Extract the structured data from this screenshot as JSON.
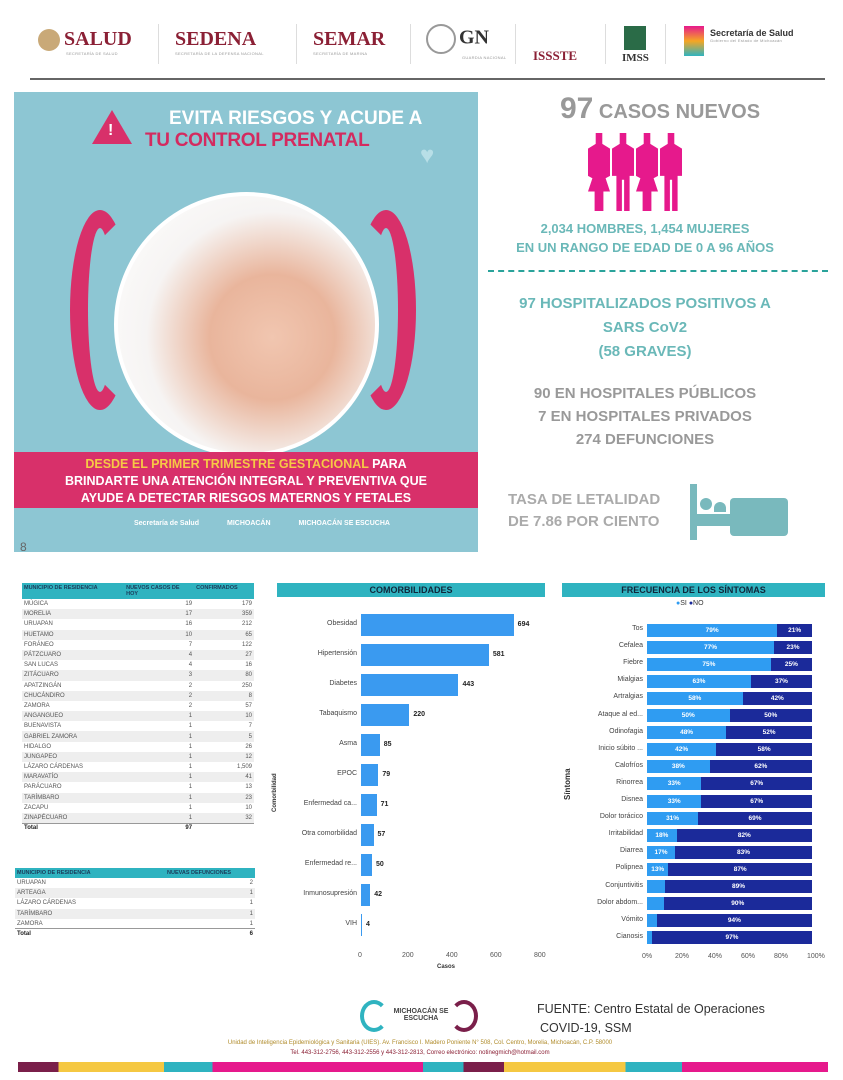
{
  "header": {
    "logos": [
      {
        "name": "SALUD",
        "sub": "SECRETARÍA DE SALUD"
      },
      {
        "name": "SEDENA",
        "sub": "SECRETARÍA DE LA DEFENSA NACIONAL"
      },
      {
        "name": "SEMAR",
        "sub": "SECRETARÍA DE MARINA"
      },
      {
        "name": "GN",
        "sub": "GUARDIA NACIONAL"
      },
      {
        "name": "ISSSTE",
        "sub": ""
      },
      {
        "name": "IMSS",
        "sub": ""
      },
      {
        "name": "Secretaría de Salud",
        "sub": "Gobierno del Estado de Michoacán"
      }
    ]
  },
  "poster": {
    "title1": "EVITA RIESGOS Y ACUDE A",
    "title2": "TU CONTROL PRENATAL",
    "highlight": "DESDE EL PRIMER TRIMESTRE GESTACIONAL",
    "body1": " PARA",
    "body2": "BRINDARTE UNA ATENCIÓN INTEGRAL Y PREVENTIVA QUE",
    "body3": "AYUDE A DETECTAR RIESGOS MATERNOS Y FETALES",
    "logo1": "Secretaría de Salud",
    "logo2": "MICHOACÁN",
    "logo3": "MICHOACÁN SE ESCUCHA"
  },
  "stats": {
    "casos_num": "97",
    "casos_label": "CASOS NUEVOS",
    "genero1": "2,034 HOMBRES, 1,454 MUJERES",
    "genero2": "EN UN RANGO DE EDAD DE 0 A 96 AÑOS",
    "hosp1": "97 HOSPITALIZADOS POSITIVOS A",
    "hosp2": "SARS CoV2",
    "hosp3": "(58 GRAVES)",
    "pub": "90 EN HOSPITALES PÚBLICOS",
    "priv": "7 EN HOSPITALES PRIVADOS",
    "def": "274 DEFUNCIONES",
    "tasa1": "TASA DE LETALIDAD",
    "tasa2": "DE 7.86 POR CIENTO",
    "colors": {
      "pink": "#e6198c",
      "teal": "#6ab8b8",
      "gray": "#9a9a9a"
    }
  },
  "casos_table": {
    "headers": [
      "MUNICIPIO DE RESIDENCIA",
      "NUEVOS CASOS DE HOY",
      "CONFIRMADOS"
    ],
    "rows": [
      [
        "MÚGICA",
        "19",
        "179"
      ],
      [
        "MORELIA",
        "17",
        "359"
      ],
      [
        "URUAPAN",
        "16",
        "212"
      ],
      [
        "HUETAMO",
        "10",
        "65"
      ],
      [
        "FORÁNEO",
        "7",
        "122"
      ],
      [
        "PÁTZCUARO",
        "4",
        "27"
      ],
      [
        "SAN LUCAS",
        "4",
        "16"
      ],
      [
        "ZITÁCUARO",
        "3",
        "80"
      ],
      [
        "APATZINGÁN",
        "2",
        "250"
      ],
      [
        "CHUCÁNDIRO",
        "2",
        "8"
      ],
      [
        "ZAMORA",
        "2",
        "57"
      ],
      [
        "ANGANGUEO",
        "1",
        "10"
      ],
      [
        "BUENAVISTA",
        "1",
        "7"
      ],
      [
        "GABRIEL ZAMORA",
        "1",
        "5"
      ],
      [
        "HIDALGO",
        "1",
        "26"
      ],
      [
        "JUNGAPEO",
        "1",
        "12"
      ],
      [
        "LÁZARO CÁRDENAS",
        "1",
        "1,509"
      ],
      [
        "MARAVATÍO",
        "1",
        "41"
      ],
      [
        "PARÁCUARO",
        "1",
        "13"
      ],
      [
        "TARÍMBARO",
        "1",
        "23"
      ],
      [
        "ZACAPU",
        "1",
        "10"
      ],
      [
        "ZINAPÉCUARO",
        "1",
        "32"
      ]
    ],
    "total": [
      "Total",
      "97",
      ""
    ]
  },
  "defunciones_table": {
    "headers": [
      "MUNICIPIO DE RESIDENCIA",
      "NUEVAS DEFUNCIONES"
    ],
    "rows": [
      [
        "URUAPAN",
        "2"
      ],
      [
        "ARTEAGA",
        "1"
      ],
      [
        "LÁZARO CÁRDENAS",
        "1"
      ],
      [
        "TARÍMBARO",
        "1"
      ],
      [
        "ZAMORA",
        "1"
      ]
    ],
    "total": [
      "Total",
      "6"
    ]
  },
  "chart_data": [
    {
      "type": "bar",
      "title": "COMORBILIDADES",
      "xlabel": "Casos",
      "ylabel": "Comorbilidad",
      "xlim": [
        0,
        800
      ],
      "ticks": [
        "0",
        "200",
        "400",
        "600",
        "800"
      ],
      "categories": [
        "Obesidad",
        "Hipertensión",
        "Diabetes",
        "Tabaquismo",
        "Asma",
        "EPOC",
        "Enfermedad ca...",
        "Otra comorbilidad",
        "Enfermedad re...",
        "Inmunosupresión",
        "VIH"
      ],
      "values": [
        694,
        581,
        443,
        220,
        85,
        79,
        71,
        57,
        50,
        42,
        4
      ]
    },
    {
      "type": "bar",
      "stacked": true,
      "title": "FRECUENCIA DE LOS SÍNTOMAS",
      "ylabel": "Síntoma",
      "legend": [
        "SI",
        "NO"
      ],
      "ticks": [
        "0%",
        "20%",
        "40%",
        "60%",
        "80%",
        "100%"
      ],
      "categories": [
        "Tos",
        "Cefalea",
        "Fiebre",
        "Mialgias",
        "Artralgias",
        "Ataque al ed...",
        "Odinofagia",
        "Inicio súbito ...",
        "Calofríos",
        "Rinorrea",
        "Disnea",
        "Dolor torácico",
        "Irritabilidad",
        "Diarrea",
        "Polipnea",
        "Conjuntivitis",
        "Dolor abdom...",
        "Vómito",
        "Cianosis"
      ],
      "series": [
        {
          "name": "SI",
          "values": [
            79,
            77,
            75,
            63,
            58,
            50,
            48,
            42,
            38,
            33,
            33,
            31,
            18,
            17,
            13,
            11,
            10,
            6,
            3
          ]
        },
        {
          "name": "NO",
          "values": [
            21,
            23,
            25,
            37,
            42,
            50,
            52,
            58,
            62,
            67,
            67,
            69,
            82,
            83,
            87,
            89,
            90,
            94,
            97
          ]
        }
      ]
    }
  ],
  "footer": {
    "logo": "MICHOACÁN SE ESCUCHA",
    "fuente1": "FUENTE: Centro Estatal de Operaciones",
    "fuente2": "COVID-19, SSM",
    "addr1": "Unidad de Inteligencia Epidemiológica y Sanitaria (UIES). Av. Francisco I. Madero Poniente N° 508, Col. Centro, Morelia, Michoacán, C.P. 58000",
    "addr2": "Tel. 443-312-2756, 443-312-2556 y 443-312-2813, Correo electrónico: notinegmich@hotmail.com"
  }
}
